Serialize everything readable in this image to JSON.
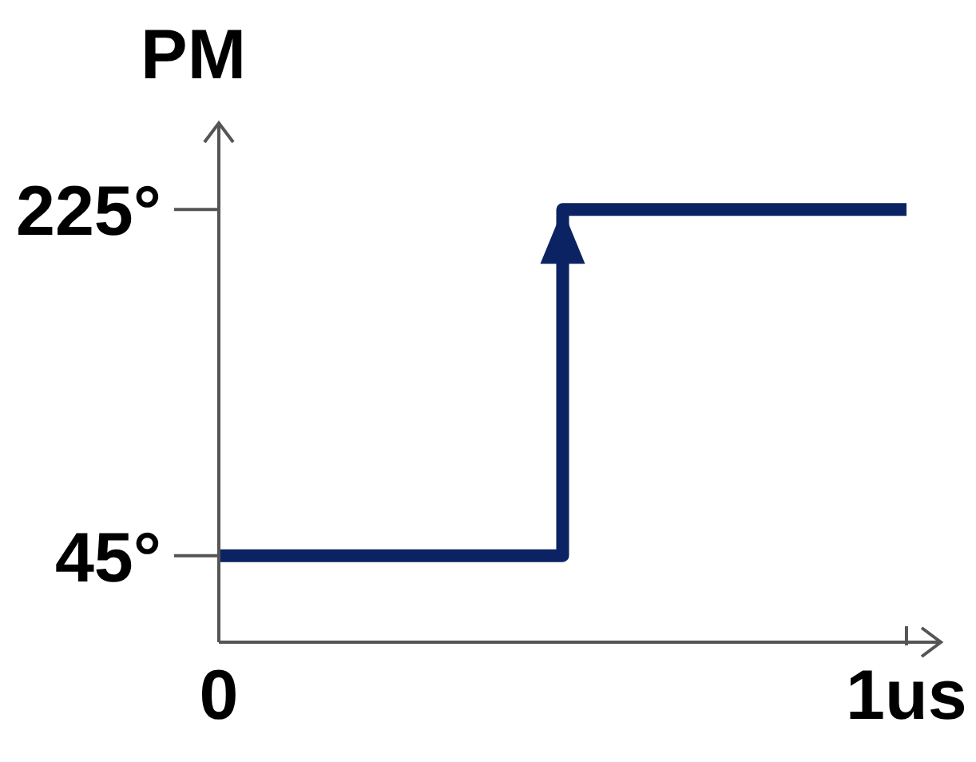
{
  "chart_data": {
    "type": "step",
    "ylabel": "PM",
    "x": [
      0,
      0.5,
      1
    ],
    "series": [
      {
        "color": "#0b2363",
        "values": [
          45,
          225,
          225
        ]
      }
    ],
    "xlim": [
      0,
      1.05
    ],
    "xticks": [
      {
        "value": 0,
        "label": "0"
      },
      {
        "value": 1,
        "label": "1us"
      }
    ],
    "ylim": [
      0,
      270
    ],
    "yticks": [
      {
        "value": 45,
        "label": "45°"
      },
      {
        "value": 225,
        "label": "225°"
      }
    ],
    "marker": "none",
    "line_style": "solid"
  }
}
